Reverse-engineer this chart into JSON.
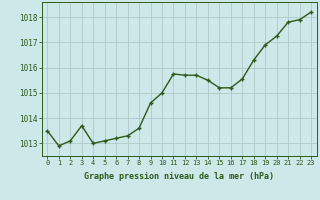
{
  "x": [
    0,
    1,
    2,
    3,
    4,
    5,
    6,
    7,
    8,
    9,
    10,
    11,
    12,
    13,
    14,
    15,
    16,
    17,
    18,
    19,
    20,
    21,
    22,
    23
  ],
  "y": [
    1013.5,
    1012.9,
    1013.1,
    1013.7,
    1013.0,
    1013.1,
    1013.2,
    1013.3,
    1013.6,
    1014.6,
    1015.0,
    1015.75,
    1015.7,
    1015.7,
    1015.5,
    1015.2,
    1015.2,
    1015.55,
    1016.3,
    1016.9,
    1017.25,
    1017.8,
    1017.9,
    1018.2
  ],
  "line_color": "#2d5a1b",
  "marker_color": "#2d5a1b",
  "bg_color": "#cce8e8",
  "grid_color": "#b0c8c8",
  "xlabel": "Graphe pression niveau de la mer (hPa)",
  "xlabel_color": "#2d5a1b",
  "ylabel_ticks": [
    1013,
    1014,
    1015,
    1016,
    1017,
    1018
  ],
  "xlim": [
    -0.5,
    23.5
  ],
  "ylim": [
    1012.5,
    1018.6
  ],
  "tick_color": "#2d5a1b",
  "spine_color": "#2d5a1b",
  "marker_size": 2.5,
  "line_width": 1.0,
  "xtick_fontsize": 5.0,
  "ytick_fontsize": 5.5,
  "xlabel_fontsize": 6.0
}
